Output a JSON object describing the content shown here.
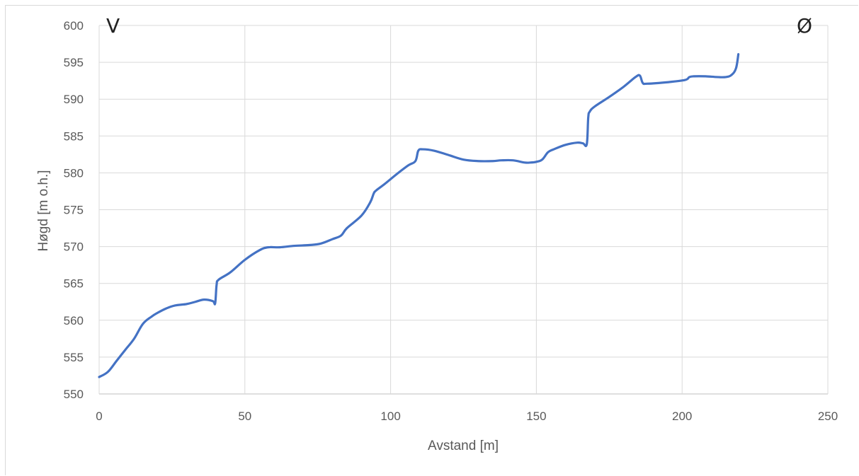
{
  "chart_data": {
    "type": "line",
    "xlabel": "Avstand [m]",
    "ylabel": "Høgd [m o.h.]",
    "xlim": [
      0,
      250
    ],
    "ylim": [
      550,
      600
    ],
    "xticks": [
      0,
      50,
      100,
      150,
      200,
      250
    ],
    "yticks": [
      550,
      555,
      560,
      565,
      570,
      575,
      580,
      585,
      590,
      595,
      600
    ],
    "grid": true,
    "line_color": "#4472c4",
    "annotations": {
      "left": "V",
      "right": "Ø"
    },
    "series": [
      {
        "x": [
          0,
          3,
          6,
          9,
          12,
          15,
          18,
          20,
          23,
          26,
          30,
          33,
          36,
          39,
          39.8,
          40.3,
          41,
          45,
          50,
          55,
          58,
          62,
          67,
          72,
          76,
          80,
          83,
          85,
          90,
          93,
          94.2,
          95,
          98,
          102,
          106,
          108.5,
          109.5,
          111,
          115,
          120,
          125,
          130,
          135,
          138,
          142,
          146,
          148,
          150,
          152,
          154,
          156,
          160,
          164,
          166,
          167.3,
          167.8,
          168.3,
          170,
          175,
          180,
          184,
          185.5,
          186.5,
          188,
          195,
          201,
          202.5,
          204,
          208,
          212,
          215,
          217,
          218.5,
          219.3
        ],
        "y": [
          552.3,
          553.0,
          554.5,
          556.0,
          557.5,
          559.5,
          560.5,
          561.0,
          561.6,
          562.0,
          562.2,
          562.5,
          562.8,
          562.6,
          562.3,
          564.8,
          565.5,
          566.5,
          568.2,
          569.5,
          569.9,
          569.9,
          570.1,
          570.2,
          570.4,
          571.0,
          571.5,
          572.5,
          574.2,
          576.0,
          577.2,
          577.6,
          578.5,
          579.8,
          581.0,
          581.6,
          583.0,
          583.2,
          583.0,
          582.4,
          581.8,
          581.6,
          581.6,
          581.7,
          581.7,
          581.4,
          581.4,
          581.5,
          581.8,
          582.8,
          583.2,
          583.8,
          584.1,
          584.0,
          583.9,
          587.5,
          588.3,
          589.0,
          590.3,
          591.7,
          593.0,
          593.2,
          592.2,
          592.1,
          592.3,
          592.6,
          593.0,
          593.1,
          593.1,
          593.0,
          593.0,
          593.3,
          594.2,
          596.1
        ]
      }
    ]
  }
}
